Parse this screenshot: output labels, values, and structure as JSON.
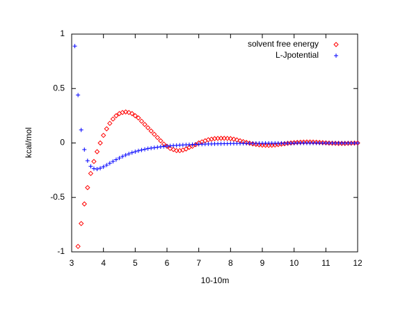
{
  "chart_data": {
    "type": "scatter",
    "xlabel": "10-10m",
    "ylabel": "kcal/mol",
    "xlim": [
      3,
      12
    ],
    "ylim": [
      -1,
      1
    ],
    "xticks": [
      3,
      4,
      5,
      6,
      7,
      8,
      9,
      10,
      11,
      12
    ],
    "yticks": [
      -1,
      -0.5,
      0,
      0.5,
      1
    ],
    "legend": "top-right",
    "series": [
      {
        "name": "solvent free energy",
        "color": "#ff0000",
        "marker": "diamond",
        "x": [
          3.2,
          3.3,
          3.4,
          3.5,
          3.6,
          3.7,
          3.8,
          3.9,
          4.0,
          4.1,
          4.2,
          4.3,
          4.4,
          4.5,
          4.6,
          4.7,
          4.8,
          4.9,
          5.0,
          5.1,
          5.2,
          5.3,
          5.4,
          5.5,
          5.6,
          5.7,
          5.8,
          5.9,
          6.0,
          6.1,
          6.2,
          6.3,
          6.4,
          6.5,
          6.6,
          6.7,
          6.8,
          6.9,
          7.0,
          7.1,
          7.2,
          7.3,
          7.4,
          7.5,
          7.6,
          7.7,
          7.8,
          7.9,
          8.0,
          8.1,
          8.2,
          8.3,
          8.4,
          8.5,
          8.6,
          8.7,
          8.8,
          8.9,
          9.0,
          9.1,
          9.2,
          9.3,
          9.4,
          9.5,
          9.6,
          9.7,
          9.8,
          9.9,
          10.0,
          10.1,
          10.2,
          10.3,
          10.4,
          10.5,
          10.6,
          10.7,
          10.8,
          10.9,
          11.0,
          11.1,
          11.2,
          11.3,
          11.4,
          11.5,
          11.6,
          11.7,
          11.8,
          11.9,
          12.0
        ],
        "values": [
          -0.95,
          -0.74,
          -0.56,
          -0.41,
          -0.28,
          -0.17,
          -0.08,
          0.0,
          0.07,
          0.13,
          0.18,
          0.22,
          0.25,
          0.27,
          0.28,
          0.285,
          0.28,
          0.27,
          0.25,
          0.23,
          0.2,
          0.17,
          0.14,
          0.11,
          0.08,
          0.05,
          0.02,
          -0.01,
          -0.03,
          -0.05,
          -0.06,
          -0.07,
          -0.07,
          -0.065,
          -0.055,
          -0.04,
          -0.03,
          -0.015,
          0.0,
          0.01,
          0.02,
          0.03,
          0.035,
          0.04,
          0.042,
          0.043,
          0.043,
          0.042,
          0.04,
          0.035,
          0.028,
          0.02,
          0.012,
          0.005,
          -0.002,
          -0.008,
          -0.013,
          -0.017,
          -0.02,
          -0.021,
          -0.022,
          -0.021,
          -0.019,
          -0.015,
          -0.011,
          -0.007,
          -0.003,
          0.0,
          0.003,
          0.005,
          0.007,
          0.008,
          0.009,
          0.009,
          0.008,
          0.007,
          0.005,
          0.003,
          0.001,
          -0.001,
          -0.002,
          -0.003,
          -0.004,
          -0.004,
          -0.004,
          -0.003,
          -0.002,
          -0.001,
          0.0
        ]
      },
      {
        "name": "L-Jpotential",
        "color": "#0000ff",
        "marker": "plus",
        "x": [
          3.1,
          3.2,
          3.3,
          3.4,
          3.5,
          3.6,
          3.7,
          3.8,
          3.9,
          4.0,
          4.1,
          4.2,
          4.3,
          4.4,
          4.5,
          4.6,
          4.7,
          4.8,
          4.9,
          5.0,
          5.1,
          5.2,
          5.3,
          5.4,
          5.5,
          5.6,
          5.7,
          5.8,
          5.9,
          6.0,
          6.1,
          6.2,
          6.3,
          6.4,
          6.5,
          6.6,
          6.7,
          6.8,
          6.9,
          7.0,
          7.1,
          7.2,
          7.3,
          7.4,
          7.5,
          7.6,
          7.7,
          7.8,
          7.9,
          8.0,
          8.1,
          8.2,
          8.3,
          8.4,
          8.5,
          8.6,
          8.7,
          8.8,
          8.9,
          9.0,
          9.1,
          9.2,
          9.3,
          9.4,
          9.5,
          9.6,
          9.7,
          9.8,
          9.9,
          10.0,
          10.1,
          10.2,
          10.3,
          10.4,
          10.5,
          10.6,
          10.7,
          10.8,
          10.9,
          11.0,
          11.1,
          11.2,
          11.3,
          11.4,
          11.5,
          11.6,
          11.7,
          11.8,
          11.9,
          12.0
        ],
        "values": [
          0.89,
          0.44,
          0.12,
          -0.061,
          -0.163,
          -0.215,
          -0.236,
          -0.24,
          -0.232,
          -0.219,
          -0.203,
          -0.186,
          -0.169,
          -0.153,
          -0.138,
          -0.124,
          -0.111,
          -0.1,
          -0.089,
          -0.08,
          -0.072,
          -0.065,
          -0.058,
          -0.052,
          -0.047,
          -0.043,
          -0.039,
          -0.035,
          -0.032,
          -0.029,
          -0.026,
          -0.024,
          -0.022,
          -0.02,
          -0.018,
          -0.017,
          -0.015,
          -0.014,
          -0.013,
          -0.012,
          -0.011,
          -0.01,
          -0.009,
          -0.009,
          -0.008,
          -0.007,
          -0.007,
          -0.006,
          -0.006,
          -0.005,
          -0.005,
          -0.004,
          -0.004,
          -0.004,
          -0.004,
          -0.003,
          -0.003,
          -0.003,
          -0.003,
          -0.003,
          -0.002,
          -0.002,
          -0.002,
          -0.002,
          -0.002,
          -0.002,
          -0.002,
          -0.002,
          -0.002,
          -0.002,
          -0.001,
          -0.001,
          -0.001,
          -0.001,
          -0.001,
          -0.001,
          -0.001,
          -0.001,
          -0.001,
          -0.001,
          -0.001,
          -0.001,
          -0.001,
          -0.001,
          -0.001,
          -0.001,
          -0.001,
          -0.001,
          -0.001,
          -0.001
        ]
      }
    ]
  }
}
